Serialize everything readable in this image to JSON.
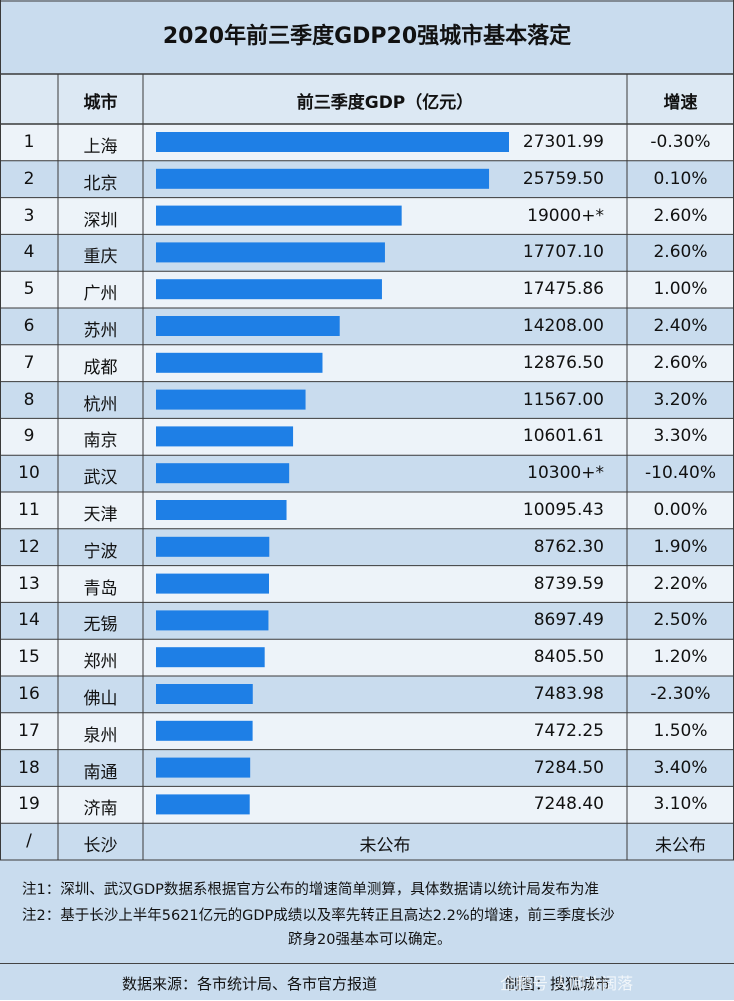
{
  "title": "2020年前三季度GDP20强城市基本落定",
  "header": {
    "city": "城市",
    "gdp": "前三季度GDP（亿元）",
    "growth": "增速"
  },
  "rows": [
    {
      "rank": "1",
      "city": "上海",
      "gdp": "27301.99",
      "growth": "-0.30%"
    },
    {
      "rank": "2",
      "city": "北京",
      "gdp": "25759.50",
      "growth": "0.10%"
    },
    {
      "rank": "3",
      "city": "深圳",
      "gdp": "19000+*",
      "growth": "2.60%"
    },
    {
      "rank": "4",
      "city": "重庆",
      "gdp": "17707.10",
      "growth": "2.60%"
    },
    {
      "rank": "5",
      "city": "广州",
      "gdp": "17475.86",
      "growth": "1.00%"
    },
    {
      "rank": "6",
      "city": "苏州",
      "gdp": "14208.00",
      "growth": "2.40%"
    },
    {
      "rank": "7",
      "city": "成都",
      "gdp": "12876.50",
      "growth": "2.60%"
    },
    {
      "rank": "8",
      "city": "杭州",
      "gdp": "11567.00",
      "growth": "3.20%"
    },
    {
      "rank": "9",
      "city": "南京",
      "gdp": "10601.61",
      "growth": "3.30%"
    },
    {
      "rank": "10",
      "city": "武汉",
      "gdp": "10300+*",
      "growth": "-10.40%"
    },
    {
      "rank": "11",
      "city": "天津",
      "gdp": "10095.43",
      "growth": "0.00%"
    },
    {
      "rank": "12",
      "city": "宁波",
      "gdp": "8762.30",
      "growth": "1.90%"
    },
    {
      "rank": "13",
      "city": "青岛",
      "gdp": "8739.59",
      "growth": "2.20%"
    },
    {
      "rank": "14",
      "city": "无锡",
      "gdp": "8697.49",
      "growth": "2.50%"
    },
    {
      "rank": "15",
      "city": "郑州",
      "gdp": "8405.50",
      "growth": "1.20%"
    },
    {
      "rank": "16",
      "city": "佛山",
      "gdp": "7483.98",
      "growth": "-2.30%"
    },
    {
      "rank": "17",
      "city": "泉州",
      "gdp": "7472.25",
      "growth": "1.50%"
    },
    {
      "rank": "18",
      "city": "南通",
      "gdp": "7284.50",
      "growth": "3.40%"
    },
    {
      "rank": "19",
      "city": "济南",
      "gdp": "7248.40",
      "growth": "3.10%"
    },
    {
      "rank": "/",
      "city": "长沙",
      "gdp": "未公布",
      "growth": "未公布"
    }
  ],
  "notes": [
    "注1：深圳、武汉GDP数据系根据官方公布的增速简单测算，具体数据请以统计局发布为准",
    "注2：基于长沙上半年5621亿元的GDP成绩以及率先转正且高达2.2%的增速，前三季度长沙",
    "跻身20强基本可以确定。"
  ],
  "footer": {
    "source": "数据来源：各市统计局、各市官方报道",
    "maker": "制图：搜狐城市",
    "watermark": "企鹅号 人间冰阔落"
  },
  "colors": {
    "bar": "#1e7fe6",
    "background": "#c9dcee",
    "header_row": "#dce8f3",
    "alt_row": "#edf3f9"
  },
  "chart_data": {
    "type": "bar",
    "orientation": "horizontal",
    "title": "2020年前三季度GDP20强城市基本落定",
    "categories": [
      "上海",
      "北京",
      "深圳",
      "重庆",
      "广州",
      "苏州",
      "成都",
      "杭州",
      "南京",
      "武汉",
      "天津",
      "宁波",
      "青岛",
      "无锡",
      "郑州",
      "佛山",
      "泉州",
      "南通",
      "济南"
    ],
    "values": [
      27301.99,
      25759.5,
      19000,
      17707.1,
      17475.86,
      14208.0,
      12876.5,
      11567.0,
      10601.61,
      10300,
      10095.43,
      8762.3,
      8739.59,
      8697.49,
      8405.5,
      7483.98,
      7472.25,
      7284.5,
      7248.4
    ],
    "xlim": [
      0,
      27301.99
    ]
  }
}
